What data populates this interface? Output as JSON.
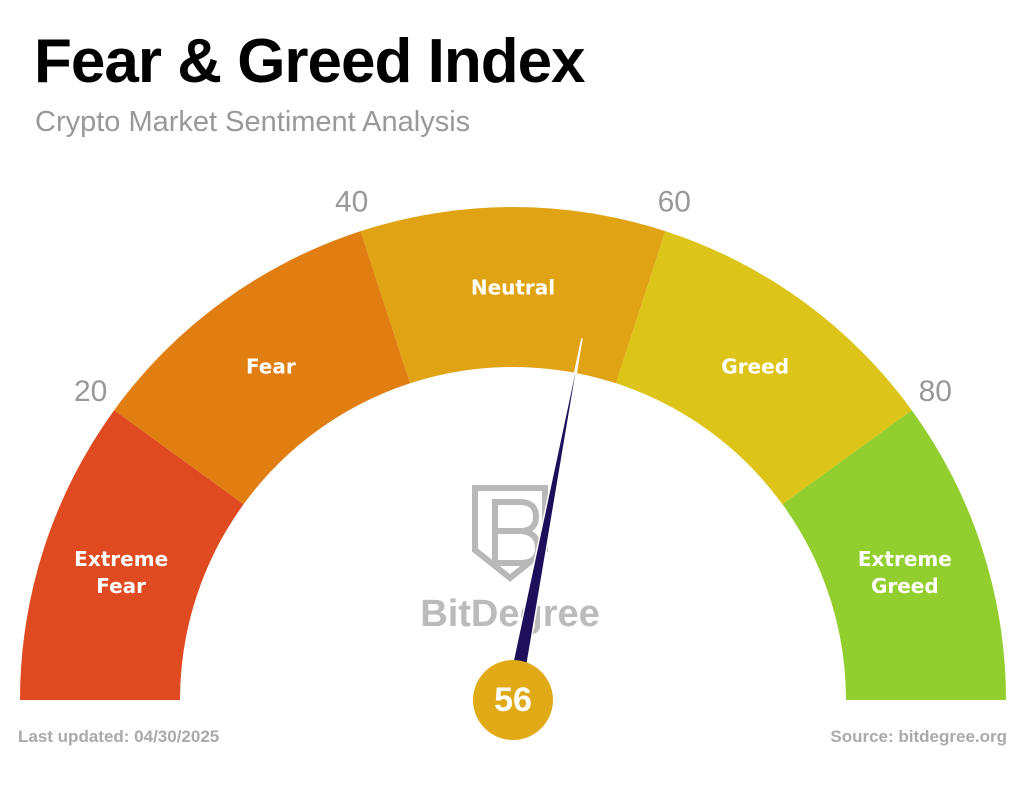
{
  "chart_data": {
    "type": "gauge",
    "title": "Fear & Greed Index",
    "subtitle": "Crypto Market Sentiment Analysis",
    "range": [
      0,
      100
    ],
    "bins": [
      0,
      20,
      40,
      60,
      80,
      100
    ],
    "categories": [
      "Extreme Fear",
      "Fear",
      "Neutral",
      "Greed",
      "Extreme Greed"
    ],
    "colors": [
      "#e04a20",
      "#e07e12",
      "#e0a314",
      "#dcc418",
      "#92cf2e"
    ],
    "ticks": [
      20,
      40,
      60,
      80
    ],
    "value": 56,
    "value_color": "#e0a916",
    "needle_color": "#1e0f5a",
    "watermark": "BitDegree",
    "footer_left": "Last updated: 04/30/2025",
    "footer_right": "Source: bitdegree.org"
  }
}
